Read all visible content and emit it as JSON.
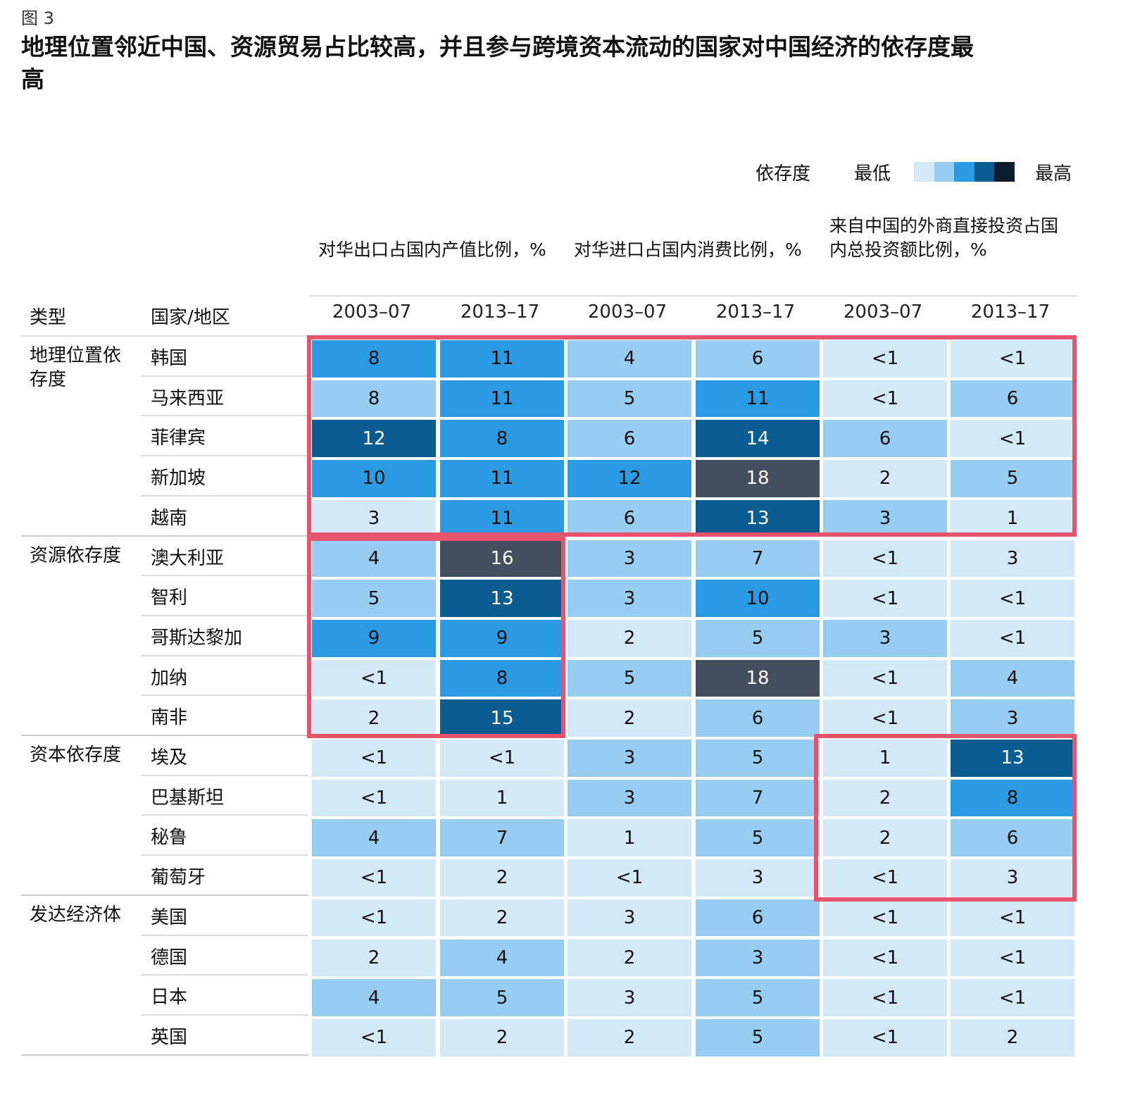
{
  "figure_label": "图 3",
  "title": "地理位置邻近中国、资源贸易占比较高，并且参与跨境资本流动的国家对中国经济的依存度最高",
  "legend": {
    "label": "依存度",
    "low": "最低",
    "high": "最高",
    "colors": [
      "#d4e9f7",
      "#97cdf0",
      "#2a9be2",
      "#0a5c91",
      "#0a1c2c"
    ]
  },
  "cell_colors": [
    "#d4e9f7",
    "#97cdf0",
    "#2a9be2",
    "#0a5c91",
    "#434e5e"
  ],
  "highlight_color": "#e5536c",
  "chart_data": {
    "type": "heatmap",
    "column_groups": [
      {
        "label": "对华出口占国内产值比例，%",
        "years": [
          "2003–07",
          "2013–17"
        ]
      },
      {
        "label": "对华进口占国内消费比例，%",
        "years": [
          "2003–07",
          "2013–17"
        ]
      },
      {
        "label": "来自中国的外商直接投资占国内总投资额比例，%",
        "years": [
          "2003–07",
          "2013–17"
        ]
      }
    ],
    "row_header_type": "类型",
    "row_header_country": "国家/地区",
    "groups": [
      {
        "type": "地理位置依存度",
        "rows": [
          {
            "country": "韩国",
            "values": [
              "8",
              "11",
              "4",
              "6",
              "<1",
              "<1"
            ],
            "levels": [
              3,
              3,
              2,
              2,
              1,
              1
            ]
          },
          {
            "country": "马来西亚",
            "values": [
              "8",
              "11",
              "5",
              "11",
              "<1",
              "6"
            ],
            "levels": [
              2,
              3,
              2,
              3,
              1,
              2
            ]
          },
          {
            "country": "菲律宾",
            "values": [
              "12",
              "8",
              "6",
              "14",
              "6",
              "<1"
            ],
            "levels": [
              4,
              3,
              2,
              4,
              2,
              1
            ]
          },
          {
            "country": "新加坡",
            "values": [
              "10",
              "11",
              "12",
              "18",
              "2",
              "5"
            ],
            "levels": [
              3,
              3,
              3,
              5,
              1,
              2
            ]
          },
          {
            "country": "越南",
            "values": [
              "3",
              "11",
              "6",
              "13",
              "3",
              "1"
            ],
            "levels": [
              1,
              3,
              2,
              4,
              2,
              1
            ]
          }
        ]
      },
      {
        "type": "资源依存度",
        "rows": [
          {
            "country": "澳大利亚",
            "values": [
              "4",
              "16",
              "3",
              "7",
              "<1",
              "3"
            ],
            "levels": [
              2,
              5,
              2,
              2,
              1,
              1
            ]
          },
          {
            "country": "智利",
            "values": [
              "5",
              "13",
              "3",
              "10",
              "<1",
              "<1"
            ],
            "levels": [
              2,
              4,
              2,
              3,
              1,
              1
            ]
          },
          {
            "country": "哥斯达黎加",
            "values": [
              "9",
              "9",
              "2",
              "5",
              "3",
              "<1"
            ],
            "levels": [
              3,
              3,
              1,
              2,
              2,
              1
            ]
          },
          {
            "country": "加纳",
            "values": [
              "<1",
              "8",
              "5",
              "18",
              "<1",
              "4"
            ],
            "levels": [
              1,
              3,
              2,
              5,
              1,
              2
            ]
          },
          {
            "country": "南非",
            "values": [
              "2",
              "15",
              "2",
              "6",
              "<1",
              "3"
            ],
            "levels": [
              1,
              4,
              1,
              2,
              1,
              2
            ]
          }
        ]
      },
      {
        "type": "资本依存度",
        "rows": [
          {
            "country": "埃及",
            "values": [
              "<1",
              "<1",
              "3",
              "5",
              "1",
              "13"
            ],
            "levels": [
              1,
              1,
              2,
              2,
              1,
              4
            ]
          },
          {
            "country": "巴基斯坦",
            "values": [
              "<1",
              "1",
              "3",
              "7",
              "2",
              "8"
            ],
            "levels": [
              1,
              1,
              2,
              2,
              1,
              3
            ]
          },
          {
            "country": "秘鲁",
            "values": [
              "4",
              "7",
              "1",
              "5",
              "2",
              "6"
            ],
            "levels": [
              2,
              2,
              1,
              2,
              1,
              2
            ]
          },
          {
            "country": "葡萄牙",
            "values": [
              "<1",
              "2",
              "<1",
              "3",
              "<1",
              "3"
            ],
            "levels": [
              1,
              1,
              1,
              1,
              1,
              1
            ]
          }
        ]
      },
      {
        "type": "发达经济体",
        "rows": [
          {
            "country": "美国",
            "values": [
              "<1",
              "2",
              "3",
              "6",
              "<1",
              "<1"
            ],
            "levels": [
              1,
              1,
              1,
              2,
              1,
              1
            ]
          },
          {
            "country": "德国",
            "values": [
              "2",
              "4",
              "2",
              "3",
              "<1",
              "<1"
            ],
            "levels": [
              1,
              2,
              1,
              2,
              1,
              1
            ]
          },
          {
            "country": "日本",
            "values": [
              "4",
              "5",
              "3",
              "5",
              "<1",
              "<1"
            ],
            "levels": [
              2,
              2,
              1,
              2,
              1,
              1
            ]
          },
          {
            "country": "英国",
            "values": [
              "<1",
              "2",
              "2",
              "5",
              "<1",
              "2"
            ],
            "levels": [
              1,
              1,
              1,
              2,
              1,
              1
            ]
          }
        ]
      }
    ]
  }
}
